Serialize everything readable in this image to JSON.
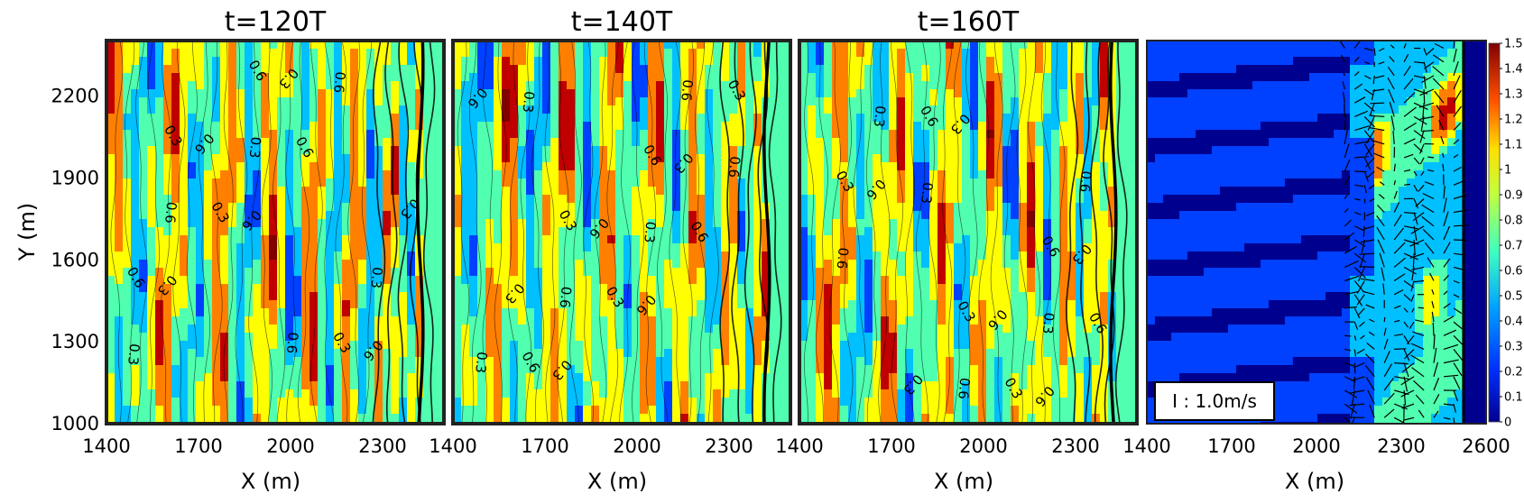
{
  "chart_data": [
    {
      "type": "heatmap",
      "title": "t=120T",
      "xlabel": "X (m)",
      "ylabel": "Y (m)",
      "xlim": [
        1400,
        2500
      ],
      "ylim": [
        1000,
        2400
      ],
      "xticks": [
        "1400",
        "1700",
        "2000",
        "2300"
      ],
      "yticks": [
        "1000",
        "1300",
        "1600",
        "1900",
        "2200"
      ],
      "contour_labels": [
        "0.3",
        "0.6"
      ]
    },
    {
      "type": "heatmap",
      "title": "t=140T",
      "xlabel": "X (m)",
      "xlim": [
        1400,
        2500
      ],
      "ylim": [
        1000,
        2400
      ],
      "xticks": [
        "1400",
        "1700",
        "2000",
        "2300"
      ],
      "contour_labels": [
        "0.3",
        "0.6"
      ]
    },
    {
      "type": "heatmap",
      "title": "t=160T",
      "xlabel": "X (m)",
      "xlim": [
        1400,
        2500
      ],
      "ylim": [
        1000,
        2400
      ],
      "xticks": [
        "1400",
        "1700",
        "2000",
        "2300"
      ],
      "contour_labels": [
        "0.3",
        "0.6"
      ]
    },
    {
      "type": "heatmap",
      "title": "",
      "xlabel": "X (m)",
      "xlim": [
        1400,
        2600
      ],
      "ylim": [
        1000,
        2400
      ],
      "xticks": [
        "1400",
        "1700",
        "2000",
        "2300",
        "2600"
      ],
      "colorbar": {
        "min": 0,
        "max": 1.5,
        "ticks": [
          "0",
          "0.1",
          "0.2",
          "0.3",
          "0.4",
          "0.5",
          "0.6",
          "0.7",
          "0.8",
          "0.9",
          "1",
          "1.1",
          "1.2",
          "1.3",
          "1.4",
          "1.5"
        ]
      },
      "vector_scale_label": "I : 1.0m/s",
      "vector_scale_value": 1.0
    }
  ],
  "colormap": [
    "#00008f",
    "#0040ff",
    "#00c0ff",
    "#50ffaf",
    "#ffff00",
    "#ff8000",
    "#c00000",
    "#800000"
  ]
}
